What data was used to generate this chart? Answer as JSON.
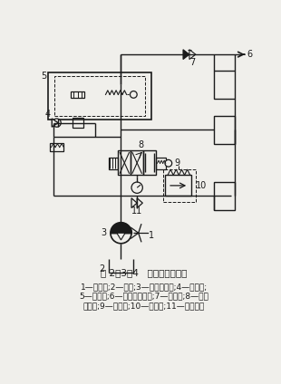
{
  "title": "图 2－3－4   液压系统示意图",
  "caption_line1": "1—电动机;2—油箱;3—单级叶片泵;4—单向阀;",
  "caption_line2": "5—支承阀;6—通往工作油缸;7—截止阀;8—电液",
  "caption_line3": "换向阀;9—压力表;10—溢流阀;11—压力开关",
  "bg_color": "#f0efeb",
  "line_color": "#1a1a1a",
  "fig_width": 3.1,
  "fig_height": 4.24,
  "dpi": 100
}
